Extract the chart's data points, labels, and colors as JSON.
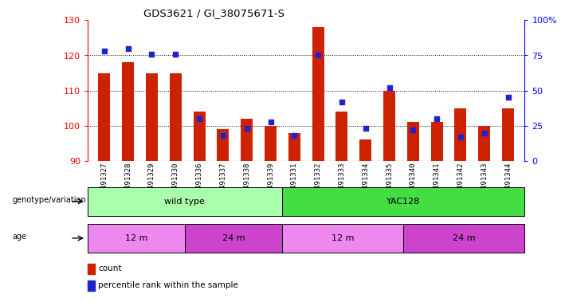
{
  "title": "GDS3621 / GI_38075671-S",
  "samples": [
    "GSM491327",
    "GSM491328",
    "GSM491329",
    "GSM491330",
    "GSM491336",
    "GSM491337",
    "GSM491338",
    "GSM491339",
    "GSM491331",
    "GSM491332",
    "GSM491333",
    "GSM491334",
    "GSM491335",
    "GSM491340",
    "GSM491341",
    "GSM491342",
    "GSM491343",
    "GSM491344"
  ],
  "counts": [
    115,
    118,
    115,
    115,
    104,
    99,
    102,
    100,
    98,
    128,
    104,
    96,
    110,
    101,
    101,
    105,
    100,
    105
  ],
  "percentiles": [
    78,
    80,
    76,
    76,
    30,
    18,
    23,
    28,
    18,
    75,
    42,
    23,
    52,
    22,
    30,
    17,
    20,
    45
  ],
  "ylim_left": [
    90,
    130
  ],
  "ylim_right": [
    0,
    100
  ],
  "yticks_left": [
    90,
    100,
    110,
    120,
    130
  ],
  "yticks_right": [
    0,
    25,
    50,
    75,
    100
  ],
  "ytick_labels_right": [
    "0",
    "25",
    "50",
    "75",
    "100%"
  ],
  "bar_color": "#cc2200",
  "dot_color": "#2222cc",
  "background_color": "#ffffff",
  "genotype_groups": [
    {
      "label": "wild type",
      "start": 0,
      "end": 7,
      "color": "#aaffaa"
    },
    {
      "label": "YAC128",
      "start": 8,
      "end": 17,
      "color": "#44dd44"
    }
  ],
  "age_groups": [
    {
      "label": "12 m",
      "start": 0,
      "end": 3,
      "color": "#ee88ee"
    },
    {
      "label": "24 m",
      "start": 4,
      "end": 7,
      "color": "#cc44cc"
    },
    {
      "label": "12 m",
      "start": 8,
      "end": 12,
      "color": "#ee88ee"
    },
    {
      "label": "24 m",
      "start": 13,
      "end": 17,
      "color": "#cc44cc"
    }
  ],
  "genotype_label": "genotype/variation",
  "age_label": "age",
  "legend_count": "count",
  "legend_percentile": "percentile rank within the sample",
  "bar_width": 0.5,
  "grid_yticks": [
    100,
    110,
    120
  ]
}
